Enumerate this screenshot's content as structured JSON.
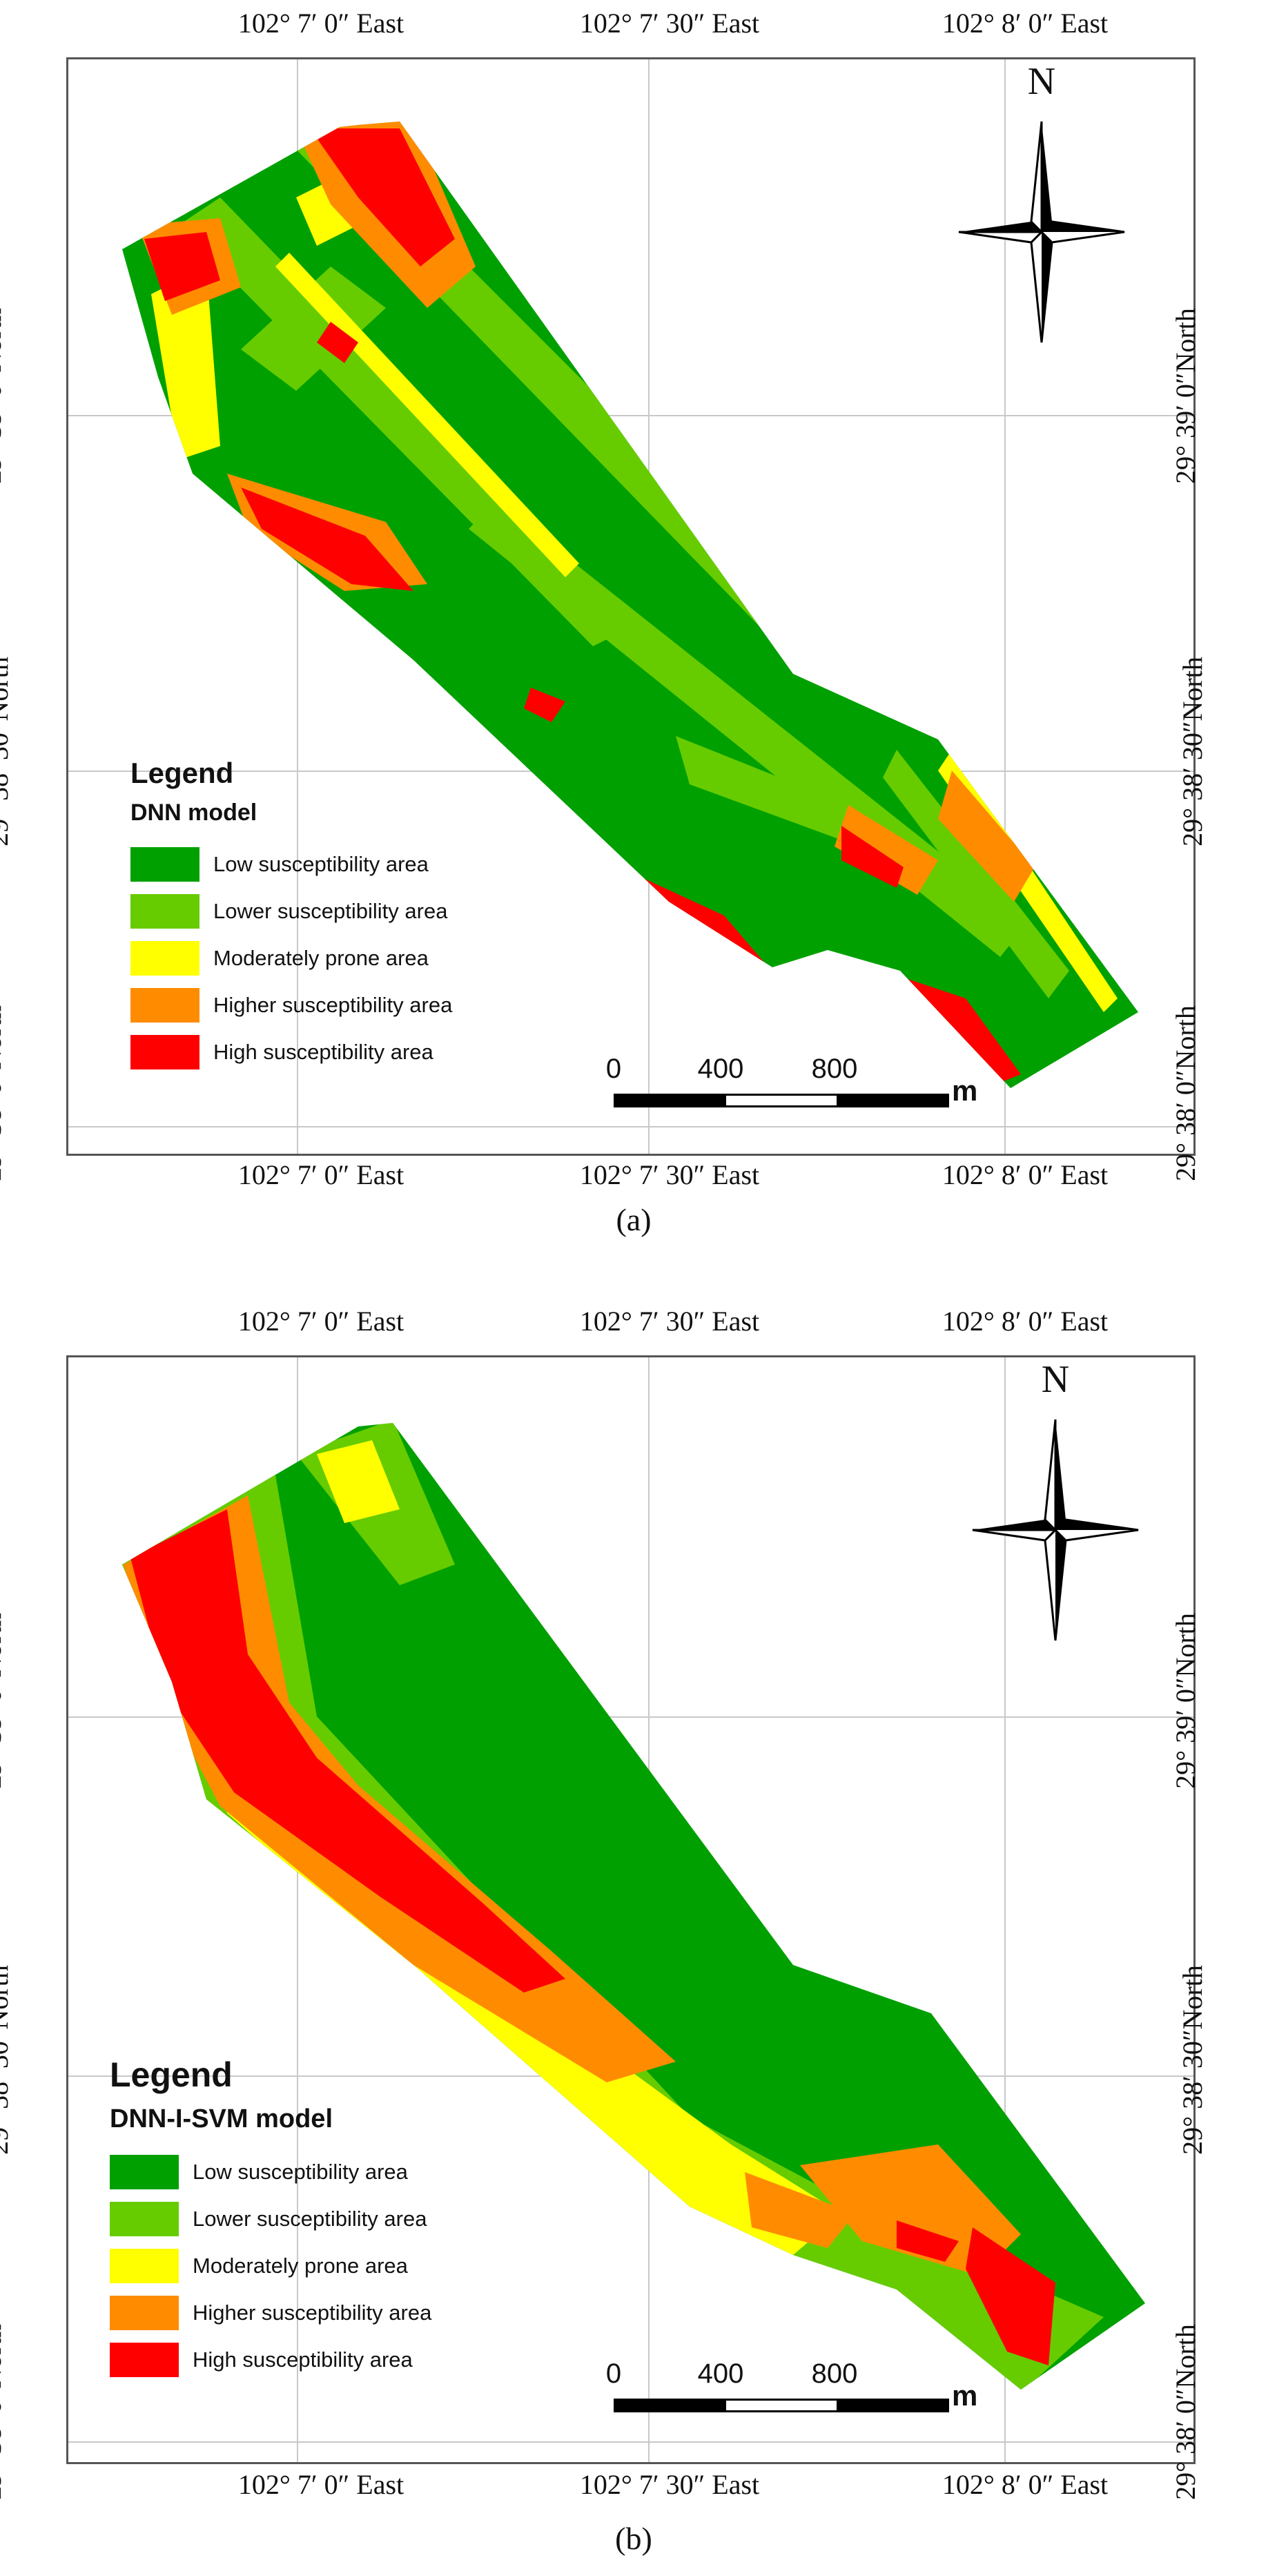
{
  "colors": {
    "low": "#00a000",
    "lower": "#66cc00",
    "moderate": "#ffff00",
    "higher": "#ff8c00",
    "high": "#ff0000"
  },
  "axis": {
    "lon_ticks": [
      "102°  7′ 0″ East",
      "102°  7′ 30″ East",
      "102°  8′ 0″ East"
    ],
    "lat_ticks": [
      "29°  39′ 0″North",
      "29°  38′ 30″North",
      "29°  38′ 0″North"
    ]
  },
  "north_label": "N",
  "legend_title": "Legend",
  "legend_items": [
    {
      "label": "Low susceptibility area",
      "color_key": "low"
    },
    {
      "label": "Lower susceptibility area",
      "color_key": "lower"
    },
    {
      "label": "Moderately prone area",
      "color_key": "moderate"
    },
    {
      "label": "Higher susceptibility area",
      "color_key": "higher"
    },
    {
      "label": "High susceptibility area",
      "color_key": "high"
    }
  ],
  "scale": {
    "labels": [
      "0",
      "400",
      "800"
    ],
    "unit": "m"
  },
  "panels": [
    {
      "caption": "(a)",
      "model": "DNN model"
    },
    {
      "caption": "(b)",
      "model": "DNN-I-SVM model"
    }
  ]
}
